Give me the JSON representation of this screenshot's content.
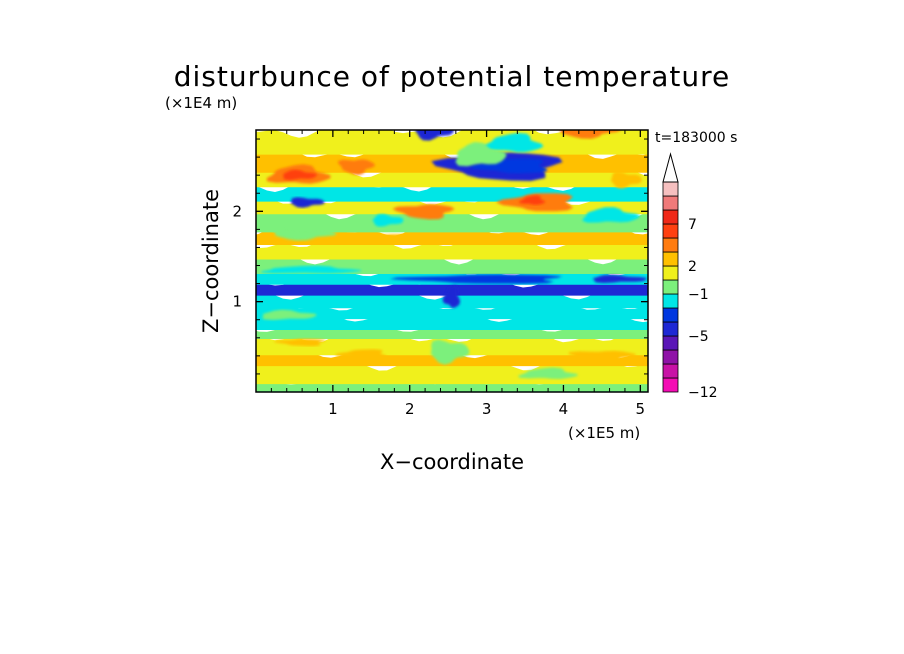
{
  "chart_data": {
    "type": "heatmap",
    "title": "disturbunce of potential temperature",
    "xlabel": "X−coordinate",
    "ylabel": "Z−coordinate",
    "x_unit": "(×1E5 m)",
    "y_unit": "(×1E4 m)",
    "time_label": "t=183000 s",
    "xlim": [
      0,
      5.1
    ],
    "ylim": [
      0,
      2.9
    ],
    "x_ticks": [
      1,
      2,
      3,
      4,
      5
    ],
    "y_ticks": [
      1,
      2
    ],
    "x_tick_labels": [
      "1",
      "2",
      "3",
      "4",
      "5"
    ],
    "y_tick_labels": [
      "1",
      "2"
    ],
    "colorbar": {
      "colors": [
        "#f40cb4",
        "#c812a6",
        "#8f12a7",
        "#5a16b7",
        "#1e28d4",
        "#0037e0",
        "#00e6e6",
        "#7cf07c",
        "#f0f01c",
        "#ffc000",
        "#ff7c10",
        "#ff4010",
        "#f02818",
        "#f07a7a",
        "#f6c0c0"
      ],
      "tick_labels": [
        "7",
        "2",
        "−1",
        "−5",
        "−12"
      ],
      "tick_levels": [
        7,
        2,
        -1,
        -5,
        -12
      ],
      "extend": "max"
    },
    "bands": [
      {
        "z_top": 0.04,
        "z_bottom": 0.0,
        "color": "#00e6e6"
      },
      {
        "z_top": 0.12,
        "z_bottom": 0.04,
        "color": "#7cf07c"
      },
      {
        "z_top": 0.32,
        "z_bottom": 0.12,
        "color": "#f0f01c"
      },
      {
        "z_top": 0.44,
        "z_bottom": 0.32,
        "color": "#ffc000"
      },
      {
        "z_top": 0.62,
        "z_bottom": 0.44,
        "color": "#f0f01c"
      },
      {
        "z_top": 0.72,
        "z_bottom": 0.62,
        "color": "#7cf07c"
      },
      {
        "z_top": 0.84,
        "z_bottom": 0.72,
        "color": "#00e6e6"
      },
      {
        "z_top": 0.96,
        "z_bottom": 0.84,
        "color": "#00e6e6"
      },
      {
        "z_top": 1.1,
        "z_bottom": 0.96,
        "color": "#00e6e6"
      },
      {
        "z_top": 1.22,
        "z_bottom": 1.1,
        "color": "#1e28d4"
      },
      {
        "z_top": 1.34,
        "z_bottom": 1.22,
        "color": "#00e6e6"
      },
      {
        "z_top": 1.5,
        "z_bottom": 1.34,
        "color": "#7cf07c"
      },
      {
        "z_top": 1.66,
        "z_bottom": 1.5,
        "color": "#f0f01c"
      },
      {
        "z_top": 1.8,
        "z_bottom": 1.66,
        "color": "#ffc000"
      },
      {
        "z_top": 2.0,
        "z_bottom": 1.8,
        "color": "#7cf07c"
      },
      {
        "z_top": 2.14,
        "z_bottom": 2.0,
        "color": "#f0f01c"
      },
      {
        "z_top": 2.3,
        "z_bottom": 2.14,
        "color": "#00e6e6"
      },
      {
        "z_top": 2.46,
        "z_bottom": 2.3,
        "color": "#f0f01c"
      },
      {
        "z_top": 2.66,
        "z_bottom": 2.46,
        "color": "#ffc000"
      },
      {
        "z_top": 2.9,
        "z_bottom": 2.66,
        "color": "#f0f01c"
      }
    ],
    "blobs": [
      {
        "x": 0.55,
        "z": 2.4,
        "rx": 0.38,
        "rz": 0.1,
        "color": "#ff7c10"
      },
      {
        "x": 0.55,
        "z": 2.4,
        "rx": 0.22,
        "rz": 0.05,
        "color": "#ff4010"
      },
      {
        "x": 0.65,
        "z": 2.1,
        "rx": 0.22,
        "rz": 0.05,
        "color": "#1e28d4"
      },
      {
        "x": 1.3,
        "z": 2.5,
        "rx": 0.22,
        "rz": 0.08,
        "color": "#ff7c10"
      },
      {
        "x": 3.2,
        "z": 2.5,
        "rx": 0.75,
        "rz": 0.15,
        "color": "#1e28d4"
      },
      {
        "x": 3.35,
        "z": 2.5,
        "rx": 0.45,
        "rz": 0.08,
        "color": "#0037e0"
      },
      {
        "x": 3.35,
        "z": 2.75,
        "rx": 0.35,
        "rz": 0.1,
        "color": "#00e6e6"
      },
      {
        "x": 2.9,
        "z": 2.62,
        "rx": 0.32,
        "rz": 0.12,
        "color": "#7cf07c"
      },
      {
        "x": 2.3,
        "z": 2.9,
        "rx": 0.25,
        "rz": 0.1,
        "color": "#1e28d4"
      },
      {
        "x": 4.3,
        "z": 2.9,
        "rx": 0.4,
        "rz": 0.08,
        "color": "#ff7c10"
      },
      {
        "x": 2.2,
        "z": 2.0,
        "rx": 0.35,
        "rz": 0.08,
        "color": "#ff7c10"
      },
      {
        "x": 3.7,
        "z": 2.1,
        "rx": 0.45,
        "rz": 0.1,
        "color": "#ff7c10"
      },
      {
        "x": 3.6,
        "z": 2.12,
        "rx": 0.15,
        "rz": 0.05,
        "color": "#ff4010"
      },
      {
        "x": 4.6,
        "z": 1.95,
        "rx": 0.35,
        "rz": 0.08,
        "color": "#00e6e6"
      },
      {
        "x": 1.7,
        "z": 1.9,
        "rx": 0.2,
        "rz": 0.06,
        "color": "#00e6e6"
      },
      {
        "x": 0.6,
        "z": 1.75,
        "rx": 0.4,
        "rz": 0.06,
        "color": "#7cf07c"
      },
      {
        "x": 1.7,
        "z": 1.7,
        "rx": 0.4,
        "rz": 0.05,
        "color": "#ffc000"
      },
      {
        "x": 3.0,
        "z": 1.25,
        "rx": 1.0,
        "rz": 0.05,
        "color": "#0037e0"
      },
      {
        "x": 2.55,
        "z": 1.05,
        "rx": 0.1,
        "rz": 0.12,
        "color": "#1e28d4"
      },
      {
        "x": 0.7,
        "z": 1.35,
        "rx": 0.6,
        "rz": 0.04,
        "color": "#00e6e6"
      },
      {
        "x": 4.7,
        "z": 1.25,
        "rx": 0.35,
        "rz": 0.04,
        "color": "#1e28d4"
      },
      {
        "x": 2.5,
        "z": 0.45,
        "rx": 0.25,
        "rz": 0.12,
        "color": "#7cf07c"
      },
      {
        "x": 4.5,
        "z": 0.4,
        "rx": 0.4,
        "rz": 0.06,
        "color": "#ffc000"
      },
      {
        "x": 0.6,
        "z": 0.55,
        "rx": 0.3,
        "rz": 0.04,
        "color": "#ffc000"
      },
      {
        "x": 1.4,
        "z": 0.42,
        "rx": 0.3,
        "rz": 0.05,
        "color": "#ffc000"
      },
      {
        "x": 3.8,
        "z": 0.2,
        "rx": 0.35,
        "rz": 0.06,
        "color": "#7cf07c"
      },
      {
        "x": 0.4,
        "z": 0.85,
        "rx": 0.35,
        "rz": 0.05,
        "color": "#7cf07c"
      },
      {
        "x": 4.8,
        "z": 2.35,
        "rx": 0.2,
        "rz": 0.08,
        "color": "#ffc000"
      }
    ]
  }
}
